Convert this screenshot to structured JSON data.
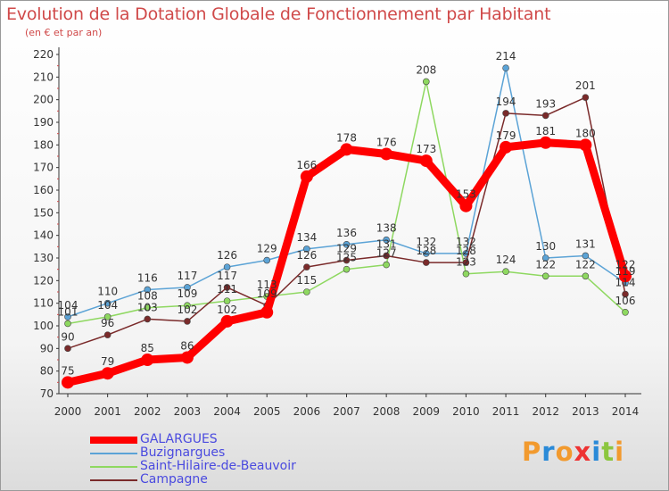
{
  "header": {
    "title": "Evolution de la Dotation Globale de Fonctionnement par Habitant",
    "subtitle": "(en € et par an)"
  },
  "brand": {
    "name": "Proxiti",
    "letters": [
      "P",
      "r",
      "o",
      "x",
      "i",
      "t",
      "i"
    ],
    "colors": [
      "#f29a2e",
      "#2a8ad8",
      "#f29a2e",
      "#ee3333",
      "#2a8ad8",
      "#8cc63f",
      "#f29a2e"
    ]
  },
  "chart_data": {
    "type": "line",
    "title": "Evolution de la Dotation Globale de Fonctionnement par Habitant",
    "subtitle": "(en € et par an)",
    "xlabel": "",
    "ylabel": "",
    "ylim": [
      70,
      220
    ],
    "ytick_step": 10,
    "grid": false,
    "legend_position": "bottom-left",
    "x": [
      2000,
      2001,
      2002,
      2003,
      2004,
      2005,
      2006,
      2007,
      2008,
      2009,
      2010,
      2011,
      2012,
      2013,
      2014
    ],
    "series": [
      {
        "name": "GALARGUES",
        "color": "#ff0000",
        "emphasis": true,
        "values": [
          75,
          79,
          85,
          86,
          102,
          106,
          166,
          178,
          176,
          173,
          153,
          179,
          181,
          180,
          122
        ],
        "labels": [
          "75",
          "79",
          "85",
          "86",
          "102",
          "",
          "166",
          "178",
          "176",
          "173",
          "153",
          "179",
          "181",
          "180",
          "122"
        ]
      },
      {
        "name": "Buzignargues",
        "color": "#5ba3d6",
        "values": [
          104,
          110,
          116,
          117,
          126,
          129,
          134,
          136,
          138,
          132,
          132,
          214,
          130,
          131,
          119
        ],
        "labels": [
          "104",
          "110",
          "116",
          "117",
          "126",
          "129",
          "134",
          "136",
          "138",
          "132",
          "132",
          "214",
          "130",
          "131",
          "119"
        ]
      },
      {
        "name": "Saint-Hilaire-de-Beauvoir",
        "color": "#8ed860",
        "values": [
          101,
          104,
          108,
          109,
          111,
          113,
          115,
          125,
          127,
          208,
          123,
          124,
          122,
          122,
          106
        ],
        "labels": [
          "101",
          "104",
          "108",
          "109",
          "111",
          "113",
          "115",
          "125",
          "127",
          "208",
          "123",
          "124",
          "122",
          "122",
          "106"
        ]
      },
      {
        "name": "Campagne",
        "color": "#7a2a2a",
        "values": [
          90,
          96,
          103,
          102,
          117,
          109,
          126,
          129,
          131,
          128,
          128,
          194,
          193,
          201,
          114
        ],
        "labels": [
          "90",
          "96",
          "103",
          "102",
          "117",
          "109",
          "126",
          "129",
          "131",
          "128",
          "128",
          "194",
          "193",
          "201",
          "114"
        ]
      }
    ]
  }
}
